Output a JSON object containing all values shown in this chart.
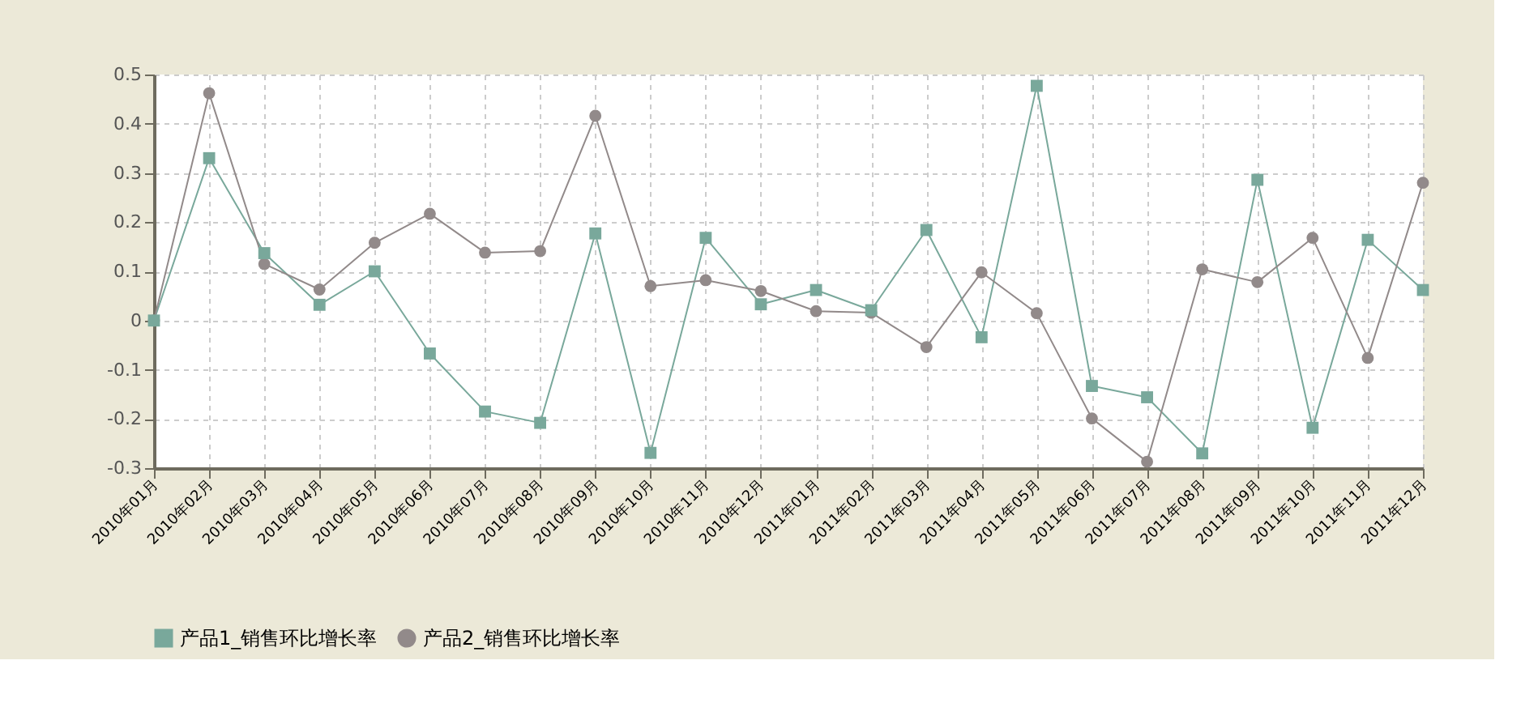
{
  "chart_data": {
    "type": "line",
    "categories": [
      "2010年01月",
      "2010年02月",
      "2010年03月",
      "2010年04月",
      "2010年05月",
      "2010年06月",
      "2010年07月",
      "2010年08月",
      "2010年09月",
      "2010年10月",
      "2010年11月",
      "2010年12月",
      "2011年01月",
      "2011年02月",
      "2011年03月",
      "2011年04月",
      "2011年05月",
      "2011年06月",
      "2011年07月",
      "2011年08月",
      "2011年09月",
      "2011年10月",
      "2011年11月",
      "2011年12月"
    ],
    "series": [
      {
        "name": "产品1_销售环比增长率",
        "color": "#79a89b",
        "marker": "square",
        "values": [
          0,
          0.33,
          0.137,
          0.032,
          0.1,
          -0.067,
          -0.185,
          -0.208,
          0.177,
          -0.269,
          0.168,
          0.033,
          0.062,
          0.021,
          0.184,
          -0.034,
          0.477,
          -0.133,
          -0.156,
          -0.27,
          0.286,
          -0.218,
          0.164,
          0.062
        ]
      },
      {
        "name": "产品2_销售环比增长率",
        "color": "#928a8a",
        "marker": "circle",
        "values": [
          0,
          0.462,
          0.115,
          0.063,
          0.158,
          0.217,
          0.138,
          0.141,
          0.416,
          0.07,
          0.082,
          0.06,
          0.019,
          0.016,
          -0.054,
          0.098,
          0.015,
          -0.199,
          -0.287,
          0.104,
          0.078,
          0.168,
          -0.076,
          0.28
        ]
      }
    ],
    "ylim": [
      -0.3,
      0.5
    ],
    "yticks": [
      -0.3,
      -0.2,
      -0.1,
      0,
      0.1,
      0.2,
      0.3,
      0.4,
      0.5
    ],
    "grid": true,
    "legend": "bottom",
    "line_style": "solid"
  }
}
